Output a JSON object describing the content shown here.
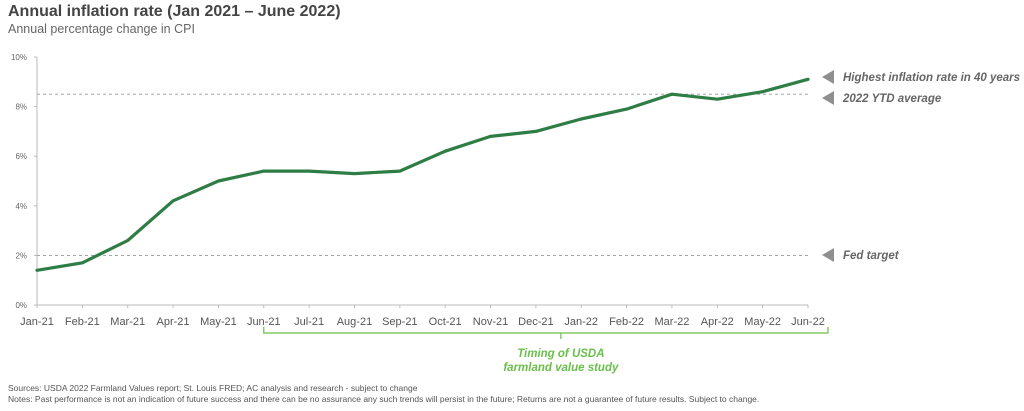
{
  "header": {
    "title": "Annual inflation rate (Jan 2021 – June 2022)",
    "subtitle": "Annual percentage change in CPI"
  },
  "chart_data": {
    "type": "line",
    "categories": [
      "Jan-21",
      "Feb-21",
      "Mar-21",
      "Apr-21",
      "May-21",
      "Jun-21",
      "Jul-21",
      "Aug-21",
      "Sep-21",
      "Oct-21",
      "Nov-21",
      "Dec-21",
      "Jan-22",
      "Feb-22",
      "Mar-22",
      "Apr-22",
      "May-22",
      "Jun-22"
    ],
    "series": [
      {
        "values": [
          1.4,
          1.7,
          2.6,
          4.2,
          5.0,
          5.4,
          5.4,
          5.3,
          5.4,
          6.2,
          6.8,
          7.0,
          7.5,
          7.9,
          8.5,
          8.3,
          8.6,
          9.1
        ]
      }
    ],
    "y_ticks": [
      "0%",
      "2%",
      "4%",
      "6%",
      "8%",
      "10%"
    ],
    "ylim": [
      0,
      10
    ],
    "line_color": "#2e7d45",
    "reference_lines": [
      {
        "value": 8.5,
        "color": "#999999",
        "style": "dashed"
      },
      {
        "value": 2.0,
        "color": "#999999",
        "style": "dashed"
      }
    ],
    "annotations": [
      {
        "text": "Highest inflation rate in 40 years",
        "value": 9.1
      },
      {
        "text": "2022 YTD average",
        "value": 8.4
      },
      {
        "text": "Fed target",
        "value": 2.0
      }
    ],
    "bracket": {
      "from": "Jun-21",
      "to": "Jun-22",
      "label_line1": "Timing of USDA",
      "label_line2": "farmland value study",
      "color": "#6abf4b"
    },
    "grid": false
  },
  "footer": {
    "sources": "Sources: USDA 2022 Farmland Values report; St. Louis FRED; AC analysis and research - subject to change",
    "notes": "Notes: Past performance is not an indication of future success and there can be no assurance any such trends will persist in the future; Returns are not a guarantee of future results. Subject to change."
  }
}
